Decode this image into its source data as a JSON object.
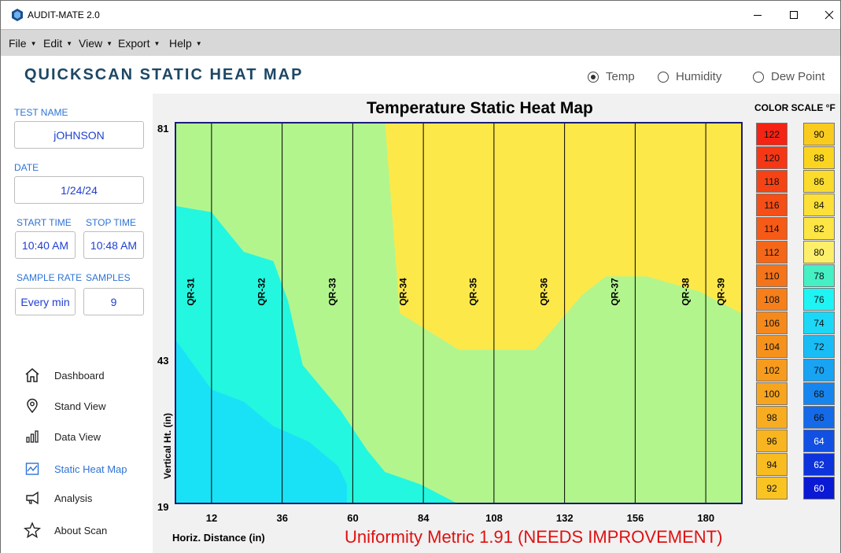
{
  "window": {
    "title": "AUDIT-MATE 2.0"
  },
  "menu": [
    {
      "label": "File"
    },
    {
      "label": "Edit"
    },
    {
      "label": "View"
    },
    {
      "label": "Export"
    },
    {
      "label": "Help"
    }
  ],
  "header": {
    "title": "QUICKSCAN STATIC HEAT MAP",
    "modes": [
      {
        "label": "Temp",
        "selected": true
      },
      {
        "label": "Humidity",
        "selected": false
      },
      {
        "label": "Dew Point",
        "selected": false
      }
    ]
  },
  "test": {
    "name_label": "TEST NAME",
    "name_value": "jOHNSON",
    "date_label": "DATE",
    "date_value": "1/24/24",
    "start_label": "START TIME",
    "start_value": "10:40 AM",
    "stop_label": "STOP TIME",
    "stop_value": "10:48 AM",
    "rate_label": "SAMPLE RATE",
    "rate_value": "Every min",
    "samples_label": "SAMPLES",
    "samples_value": "9"
  },
  "nav": [
    {
      "label": "Dashboard",
      "icon": "home-icon",
      "active": false
    },
    {
      "label": "Stand View",
      "icon": "location-pin-icon",
      "active": false
    },
    {
      "label": "Data View",
      "icon": "bar-chart-icon",
      "active": false
    },
    {
      "label": "Static Heat Map",
      "icon": "heat-map-icon",
      "active": true
    },
    {
      "label": "Analysis",
      "icon": "megaphone-icon",
      "active": false
    },
    {
      "label": "About Scan",
      "icon": "star-icon",
      "active": false
    }
  ],
  "chart_data": {
    "type": "heatmap",
    "title": "Temperature Static Heat Map",
    "xlabel": "Horiz. Distance (in)",
    "ylabel": "Vertical Ht. (in)",
    "xlim": [
      0,
      192
    ],
    "ylim": [
      19,
      81
    ],
    "x_ticks": [
      12,
      36,
      60,
      84,
      108,
      132,
      156,
      180
    ],
    "y_ticks": [
      {
        "value": 81,
        "label": "81"
      },
      {
        "value": 43,
        "label": "43"
      },
      {
        "value": 19,
        "label": "19"
      }
    ],
    "sensors": [
      {
        "name": "QR-31",
        "x": 12
      },
      {
        "name": "QR-32",
        "x": 36
      },
      {
        "name": "QR-33",
        "x": 60
      },
      {
        "name": "QR-34",
        "x": 84
      },
      {
        "name": "QR-35",
        "x": 108
      },
      {
        "name": "QR-36",
        "x": 132
      },
      {
        "name": "QR-37",
        "x": 156
      },
      {
        "name": "QR-38",
        "x": 180
      },
      {
        "name": "QR-39",
        "x": 192
      }
    ],
    "regions": [
      {
        "temp": 80,
        "color": "#fde84a",
        "points": [
          [
            71,
            81
          ],
          [
            192,
            81
          ],
          [
            192,
            50
          ],
          [
            178,
            53.5
          ],
          [
            160,
            56
          ],
          [
            146,
            56
          ],
          [
            138,
            53
          ],
          [
            122,
            44
          ],
          [
            96,
            44
          ],
          [
            76,
            50
          ],
          [
            71,
            81
          ]
        ]
      },
      {
        "temp": 76,
        "color": "#23f7df",
        "points": [
          [
            0,
            67.5
          ],
          [
            12,
            66.5
          ],
          [
            23,
            60
          ],
          [
            33,
            58.5
          ],
          [
            38,
            52
          ],
          [
            43,
            41.5
          ],
          [
            56,
            34
          ],
          [
            65,
            27.5
          ],
          [
            71,
            24
          ],
          [
            83,
            22
          ],
          [
            95,
            19
          ],
          [
            0,
            19
          ],
          [
            0,
            67.5
          ]
        ]
      },
      {
        "temp": 74,
        "color": "#19e2f6",
        "points": [
          [
            0,
            45.5
          ],
          [
            12,
            37.5
          ],
          [
            23,
            35.5
          ],
          [
            33,
            31.5
          ],
          [
            45,
            29
          ],
          [
            55,
            25
          ],
          [
            58,
            22
          ],
          [
            58,
            19
          ],
          [
            0,
            19
          ],
          [
            0,
            45.5
          ]
        ]
      }
    ],
    "uniformity_text": "Uniformity Metric 1.91 (NEEDS IMPROVEMENT)"
  },
  "color_scale": {
    "title": "COLOR SCALE °F",
    "left": [
      {
        "value": "122",
        "color": "#f42313"
      },
      {
        "value": "120",
        "color": "#f53715"
      },
      {
        "value": "118",
        "color": "#f54315"
      },
      {
        "value": "116",
        "color": "#f54e16"
      },
      {
        "value": "114",
        "color": "#f55a17"
      },
      {
        "value": "112",
        "color": "#f56718"
      },
      {
        "value": "110",
        "color": "#f57319"
      },
      {
        "value": "108",
        "color": "#f67f1a"
      },
      {
        "value": "106",
        "color": "#f6891b"
      },
      {
        "value": "104",
        "color": "#f6921c"
      },
      {
        "value": "102",
        "color": "#f69b1d"
      },
      {
        "value": "100",
        "color": "#f7a41e"
      },
      {
        "value": "98",
        "color": "#f7ad1f"
      },
      {
        "value": "96",
        "color": "#f8b520"
      },
      {
        "value": "94",
        "color": "#f8bc21"
      },
      {
        "value": "92",
        "color": "#f9c322"
      }
    ],
    "right": [
      {
        "value": "90",
        "color": "#facb1f"
      },
      {
        "value": "88",
        "color": "#fbd420"
      },
      {
        "value": "86",
        "color": "#fbdb2b"
      },
      {
        "value": "84",
        "color": "#fce038"
      },
      {
        "value": "82",
        "color": "#fce545"
      },
      {
        "value": "80",
        "color": "#fdef6a"
      },
      {
        "value": "78",
        "color": "#45f0c4"
      },
      {
        "value": "76",
        "color": "#1ff4f4"
      },
      {
        "value": "74",
        "color": "#1cd8f6"
      },
      {
        "value": "72",
        "color": "#19bdf5"
      },
      {
        "value": "70",
        "color": "#18a3f3"
      },
      {
        "value": "68",
        "color": "#1686ee"
      },
      {
        "value": "66",
        "color": "#146ae8"
      },
      {
        "value": "64",
        "color": "#1150e2"
      },
      {
        "value": "62",
        "color": "#0d33dc"
      },
      {
        "value": "60",
        "color": "#0a19d3"
      }
    ]
  }
}
